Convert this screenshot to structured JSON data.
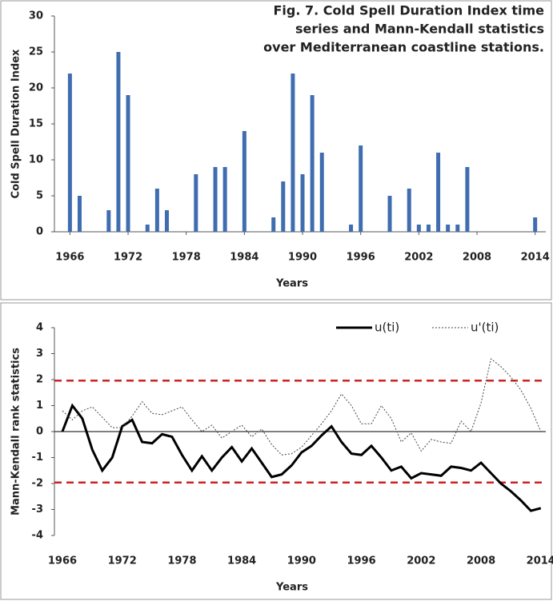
{
  "chart_data": [
    {
      "type": "bar",
      "title_lines": [
        "Fig. 7. Cold Spell Duration Index time",
        "series and Mann-Kendall statistics",
        "over Mediterranean coastline stations."
      ],
      "x_label": "Years",
      "y_label": "Cold Spell Duration Index",
      "x": [
        1966,
        1967,
        1970,
        1971,
        1972,
        1974,
        1975,
        1976,
        1979,
        1981,
        1982,
        1984,
        1987,
        1988,
        1989,
        1990,
        1991,
        1992,
        1995,
        1996,
        1999,
        2001,
        2002,
        2003,
        2004,
        2005,
        2006,
        2007,
        2014
      ],
      "values": [
        22,
        5,
        3,
        25,
        19,
        1,
        6,
        3,
        8,
        9,
        9,
        14,
        2,
        7,
        22,
        8,
        19,
        11,
        1,
        12,
        5,
        6,
        1,
        1,
        11,
        1,
        1,
        9,
        2
      ],
      "color": "#3f6db0",
      "xlim": [
        1964.4,
        2015.1
      ],
      "xticks": [
        1966,
        1972,
        1978,
        1984,
        1990,
        1996,
        2002,
        2008,
        2014
      ],
      "ylim": [
        0,
        30
      ],
      "yticks": [
        0,
        5,
        10,
        15,
        20,
        25,
        30
      ]
    },
    {
      "type": "line",
      "x_label": "Years",
      "y_label": "Mann-Kendall rank statistics",
      "x": [
        1966,
        1967,
        1968,
        1969,
        1970,
        1971,
        1972,
        1973,
        1974,
        1975,
        1976,
        1977,
        1978,
        1979,
        1980,
        1981,
        1982,
        1983,
        1984,
        1985,
        1986,
        1987,
        1988,
        1989,
        1990,
        1991,
        1992,
        1993,
        1994,
        1995,
        1996,
        1997,
        1998,
        1999,
        2000,
        2001,
        2002,
        2003,
        2004,
        2005,
        2006,
        2007,
        2008,
        2009,
        2010,
        2011,
        2012,
        2013,
        2014
      ],
      "series": [
        {
          "name": "u(ti)",
          "color": "#000000",
          "dash": false,
          "width": 3,
          "values": [
            0,
            1.0,
            0.5,
            -0.7,
            -1.5,
            -1.0,
            0.2,
            0.45,
            -0.4,
            -0.45,
            -0.1,
            -0.2,
            -0.9,
            -1.5,
            -0.95,
            -1.5,
            -1.0,
            -0.6,
            -1.15,
            -0.65,
            -1.2,
            -1.75,
            -1.65,
            -1.3,
            -0.8,
            -0.55,
            -0.15,
            0.2,
            -0.4,
            -0.85,
            -0.9,
            -0.55,
            -1.0,
            -1.5,
            -1.35,
            -1.8,
            -1.6,
            -1.65,
            -1.7,
            -1.35,
            -1.4,
            -1.5,
            -1.2,
            -1.6,
            -2.0,
            -2.3,
            -2.65,
            -3.05,
            -2.95
          ]
        },
        {
          "name": "u'(ti)",
          "color": "#444444",
          "dash": true,
          "width": 1,
          "values": [
            0.8,
            0.45,
            0.8,
            0.95,
            0.55,
            0.15,
            0.15,
            0.6,
            1.15,
            0.7,
            0.65,
            0.8,
            0.95,
            0.45,
            0.0,
            0.25,
            -0.25,
            0.0,
            0.25,
            -0.2,
            0.1,
            -0.5,
            -0.9,
            -0.85,
            -0.6,
            -0.15,
            0.3,
            0.8,
            1.45,
            1.0,
            0.3,
            0.3,
            1.0,
            0.5,
            -0.4,
            -0.05,
            -0.75,
            -0.3,
            -0.4,
            -0.45,
            0.4,
            0.0,
            1.1,
            2.8,
            2.5,
            2.1,
            1.6,
            0.9,
            0.0
          ]
        }
      ],
      "hlines": [
        {
          "value": 1.96,
          "color": "#cc2222",
          "dash": true
        },
        {
          "value": -1.96,
          "color": "#cc2222",
          "dash": true
        },
        {
          "value": 0,
          "color": "#000000",
          "dash": false
        }
      ],
      "legend": "top-right",
      "xlim": [
        1965.2,
        2014.5
      ],
      "xticks": [
        1966,
        1972,
        1978,
        1984,
        1990,
        1996,
        2002,
        2008,
        2014
      ],
      "ylim": [
        -4,
        4
      ],
      "yticks": [
        -4,
        -3,
        -2,
        -1,
        0,
        1,
        2,
        3,
        4
      ]
    }
  ]
}
